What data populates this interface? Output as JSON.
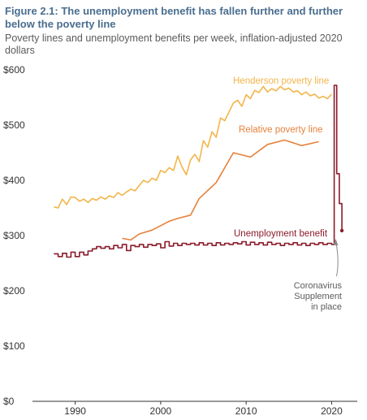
{
  "figure": {
    "title": "Figure 2.1: The unemployment benefit has fallen further and further below the poverty line",
    "subtitle": "Poverty lines and unemployment benefits per week, inflation-adjusted 2020 dollars"
  },
  "chart_data": {
    "type": "line",
    "title": "Figure 2.1: The unemployment benefit has fallen further and further below the poverty line",
    "subtitle": "Poverty lines and unemployment benefits per week, inflation-adjusted 2020 dollars",
    "xlabel": "",
    "ylabel": "",
    "xlim": [
      1985,
      2023
    ],
    "ylim": [
      0,
      600
    ],
    "x_ticks": [
      "1990",
      "2000",
      "2010",
      "2020"
    ],
    "y_ticks": [
      "$0",
      "$100",
      "$200",
      "$300",
      "$400",
      "$500",
      "$600"
    ],
    "grid": false,
    "legend": "inline-labels",
    "series": [
      {
        "name": "Henderson poverty line",
        "color": "#f2b54a",
        "x": [
          1987.5,
          1988,
          1988.5,
          1989,
          1989.5,
          1990,
          1990.5,
          1991,
          1991.5,
          1992,
          1992.5,
          1993,
          1993.5,
          1994,
          1994.5,
          1995,
          1995.5,
          1996,
          1996.5,
          1997,
          1997.5,
          1998,
          1998.5,
          1999,
          1999.5,
          2000,
          2000.5,
          2001,
          2001.5,
          2002,
          2002.5,
          2003,
          2003.5,
          2004,
          2004.5,
          2005,
          2005.5,
          2006,
          2006.5,
          2007,
          2007.5,
          2008,
          2008.5,
          2009,
          2009.5,
          2010,
          2010.5,
          2011,
          2011.5,
          2012,
          2012.5,
          2013,
          2013.5,
          2014,
          2014.5,
          2015,
          2015.5,
          2016,
          2016.5,
          2017,
          2017.5,
          2018,
          2018.5,
          2019,
          2019.5,
          2020
        ],
        "values": [
          352,
          350,
          366,
          356,
          370,
          369,
          362,
          366,
          360,
          367,
          364,
          370,
          366,
          372,
          369,
          378,
          373,
          379,
          384,
          381,
          391,
          400,
          396,
          404,
          400,
          418,
          414,
          423,
          418,
          444,
          424,
          410,
          437,
          447,
          434,
          472,
          460,
          488,
          478,
          513,
          508,
          524,
          540,
          545,
          534,
          555,
          548,
          563,
          559,
          570,
          560,
          566,
          562,
          570,
          564,
          567,
          560,
          562,
          555,
          560,
          553,
          556,
          549,
          552,
          548,
          556
        ]
      },
      {
        "name": "Relative poverty line",
        "color": "#e6813a",
        "x": [
          1995.5,
          1996.5,
          1997.5,
          1999,
          2000,
          2001,
          2002,
          2003.5,
          2004.5,
          2006.5,
          2008.5,
          2010.5,
          2012.5,
          2014.5,
          2016.5,
          2018.5
        ],
        "values": [
          295,
          292,
          303,
          310,
          318,
          326,
          331,
          337,
          367,
          396,
          450,
          442,
          465,
          473,
          463,
          470
        ]
      },
      {
        "name": "Unemployment benefit",
        "color": "#8b1a2a",
        "x": [
          1987.5,
          1988,
          1988.5,
          1989,
          1989.5,
          1990,
          1990.5,
          1991,
          1991.5,
          1992,
          1992.5,
          1993,
          1993.5,
          1994,
          1994.5,
          1995,
          1995.5,
          1996,
          1996.5,
          1997,
          1997.5,
          1998,
          1998.5,
          1999,
          1999.5,
          2000,
          2000.5,
          2001,
          2001.5,
          2002,
          2002.5,
          2003,
          2003.5,
          2004,
          2004.5,
          2005,
          2005.5,
          2006,
          2006.5,
          2007,
          2007.5,
          2008,
          2008.5,
          2009,
          2009.5,
          2010,
          2010.5,
          2011,
          2011.5,
          2012,
          2012.5,
          2013,
          2013.5,
          2014,
          2014.5,
          2015,
          2015.5,
          2016,
          2016.5,
          2017,
          2017.5,
          2018,
          2018.5,
          2019,
          2019.5,
          2020,
          2020.3,
          2020.6,
          2020.9,
          2021.2
        ],
        "values": [
          267,
          262,
          268,
          261,
          270,
          262,
          270,
          265,
          272,
          276,
          280,
          277,
          280,
          276,
          282,
          278,
          284,
          273,
          282,
          280,
          284,
          279,
          284,
          282,
          285,
          278,
          289,
          281,
          286,
          282,
          286,
          284,
          286,
          283,
          287,
          283,
          286,
          282,
          287,
          283,
          286,
          284,
          287,
          285,
          289,
          283,
          288,
          284,
          287,
          283,
          288,
          284,
          286,
          282,
          286,
          284,
          287,
          283,
          286,
          282,
          286,
          284,
          287,
          284,
          286,
          284,
          572,
          412,
          358,
          309
        ],
        "step": true
      }
    ],
    "annotations": [
      {
        "text": "Coronavirus Supplement in place",
        "lines": [
          "Coronavirus",
          "Supplement",
          "in place"
        ],
        "x": 2020,
        "y": 300
      }
    ]
  }
}
